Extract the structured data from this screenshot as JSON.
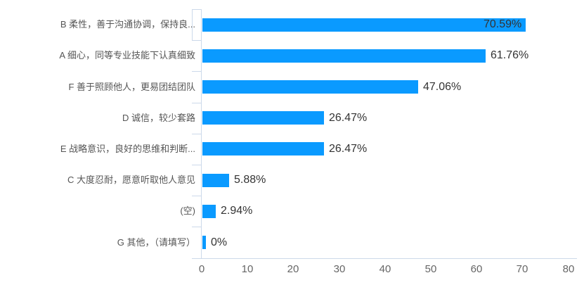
{
  "chart_data": {
    "type": "bar",
    "orientation": "horizontal",
    "title": "",
    "xlabel": "",
    "ylabel": "",
    "grid": false,
    "legend": null,
    "categories": [
      "B 柔性，善于沟通协调，保持良...",
      "A 细心，同等专业技能下认真细致",
      "F 善于照顾他人，更易团结团队",
      "D 诚信，较少套路",
      "E 战略意识，良好的思维和判断...",
      "C 大度忍耐，愿意听取他人意见",
      "(空)",
      "G 其他，（请填写）"
    ],
    "values": [
      70.59,
      61.76,
      47.06,
      26.47,
      26.47,
      5.88,
      2.94,
      0
    ],
    "value_labels": [
      "70.59%",
      "61.76%",
      "47.06%",
      "26.47%",
      "26.47%",
      "5.88%",
      "2.94%",
      "0%"
    ],
    "x_ticks": [
      "0",
      "10",
      "20",
      "30",
      "40",
      "50",
      "60",
      "70",
      "80"
    ],
    "xlim": [
      0,
      80
    ],
    "colors": {
      "bar": "#0a9aff",
      "axis_line": "#ccd9ea",
      "category_label": "#555555",
      "value_label": "#333333",
      "tick_label": "#666666",
      "background": "#ffffff"
    }
  }
}
